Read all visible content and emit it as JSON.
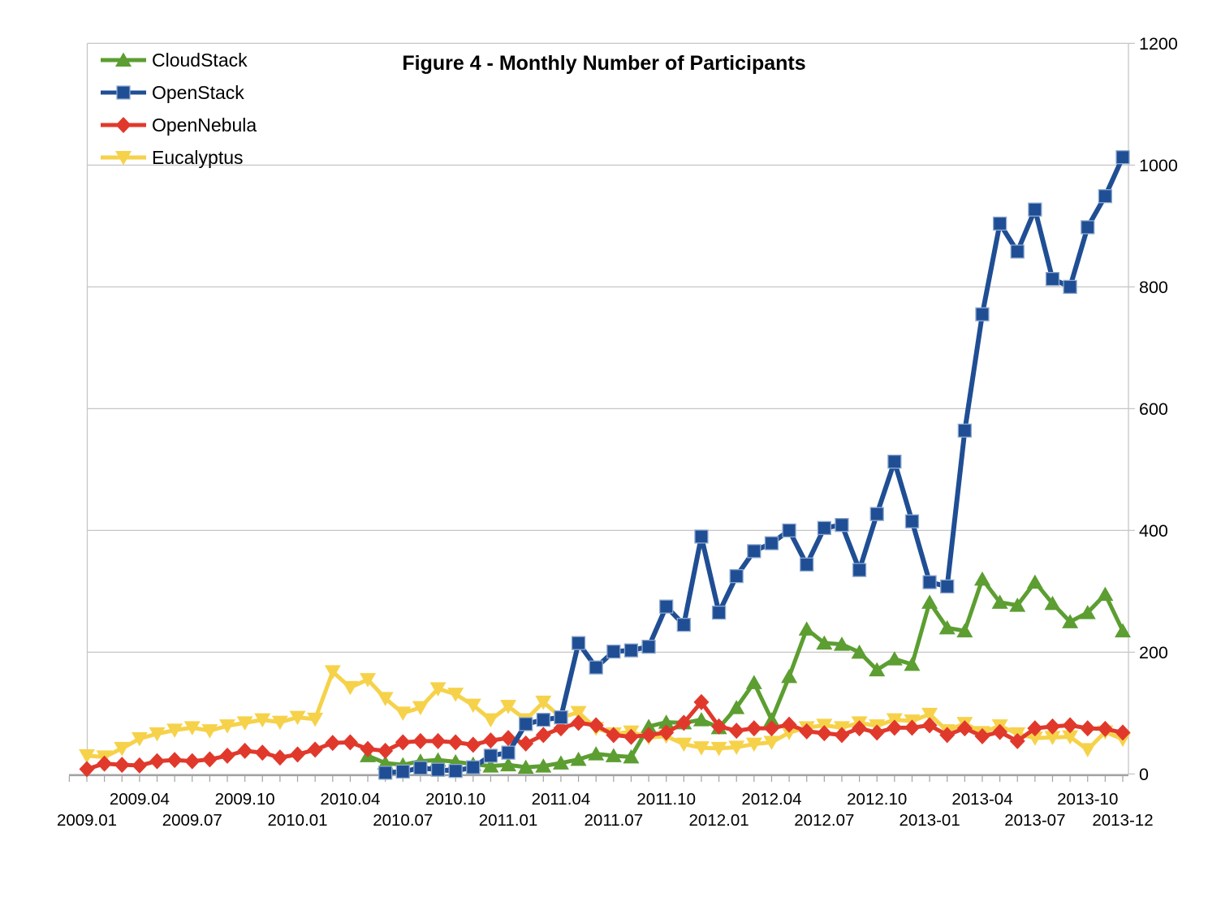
{
  "colors": {
    "gridline": "#c6c6c6",
    "axis": "#a3a3a3",
    "text": "#000000",
    "background": "#ffffff"
  },
  "chart_data": {
    "type": "line",
    "title": "Figure 4 - Monthly Number of Participants",
    "legend_position": "top-left",
    "grid": true,
    "x_axis": {
      "months_start": "2009.01",
      "months_end": "2013-12",
      "month_count": 60,
      "row1_labels": [
        {
          "label": "2009.04",
          "month": 3
        },
        {
          "label": "2009.10",
          "month": 9
        },
        {
          "label": "2010.04",
          "month": 15
        },
        {
          "label": "2010.10",
          "month": 21
        },
        {
          "label": "2011.04",
          "month": 27
        },
        {
          "label": "2011.10",
          "month": 33
        },
        {
          "label": "2012.04",
          "month": 39
        },
        {
          "label": "2012.10",
          "month": 45
        },
        {
          "label": "2013-04",
          "month": 51
        },
        {
          "label": "2013-10",
          "month": 57
        }
      ],
      "row2_labels": [
        {
          "label": "2009.01",
          "month": 0
        },
        {
          "label": "2009.07",
          "month": 6
        },
        {
          "label": "2010.01",
          "month": 12
        },
        {
          "label": "2010.07",
          "month": 18
        },
        {
          "label": "2011.01",
          "month": 24
        },
        {
          "label": "2011.07",
          "month": 30
        },
        {
          "label": "2012.01",
          "month": 36
        },
        {
          "label": "2012.07",
          "month": 42
        },
        {
          "label": "2013-01",
          "month": 48
        },
        {
          "label": "2013-07",
          "month": 54
        },
        {
          "label": "2013-12",
          "month": 59
        }
      ]
    },
    "y_axis": {
      "side": "right",
      "min": 0,
      "max": 1200,
      "tick_step": 200,
      "ticks": [
        0,
        200,
        400,
        600,
        800,
        1000,
        1200
      ]
    },
    "series": [
      {
        "name": "CloudStack",
        "color": "#5c9e31",
        "marker": "triangle-up",
        "values": [
          null,
          null,
          null,
          null,
          null,
          null,
          null,
          null,
          null,
          null,
          null,
          null,
          null,
          null,
          null,
          null,
          30,
          18,
          15,
          21,
          23,
          20,
          16,
          13,
          15,
          11,
          13,
          18,
          24,
          33,
          30,
          28,
          78,
          85,
          84,
          89,
          76,
          109,
          150,
          89,
          160,
          238,
          215,
          213,
          200,
          171,
          189,
          180,
          282,
          240,
          235,
          320,
          282,
          277,
          315,
          280,
          250,
          265,
          295,
          235
        ]
      },
      {
        "name": "OpenStack",
        "color": "#1f4e94",
        "marker": "square",
        "marker_edge": "#8ea9cf",
        "values": [
          null,
          null,
          null,
          null,
          null,
          null,
          null,
          null,
          null,
          null,
          null,
          null,
          null,
          null,
          null,
          null,
          null,
          2,
          4,
          10,
          7,
          5,
          11,
          30,
          35,
          82,
          89,
          93,
          215,
          175,
          201,
          203,
          209,
          275,
          245,
          390,
          265,
          325,
          366,
          379,
          400,
          344,
          404,
          409,
          335,
          427,
          513,
          415,
          315,
          308,
          564,
          755,
          904,
          858,
          927,
          813,
          800,
          898,
          949,
          1013
        ]
      },
      {
        "name": "OpenNebula",
        "color": "#e0392c",
        "marker": "diamond",
        "values": [
          8,
          17,
          15,
          14,
          21,
          23,
          21,
          24,
          30,
          38,
          35,
          27,
          32,
          40,
          51,
          52,
          41,
          38,
          52,
          54,
          54,
          52,
          48,
          55,
          59,
          50,
          64,
          75,
          84,
          80,
          64,
          61,
          64,
          68,
          84,
          118,
          78,
          71,
          75,
          75,
          81,
          70,
          67,
          64,
          75,
          68,
          76,
          76,
          80,
          64,
          75,
          62,
          69,
          54,
          75,
          78,
          80,
          75,
          74,
          68
        ]
      },
      {
        "name": "Eucalyptus",
        "color": "#f6d24a",
        "marker": "triangle-down",
        "values": [
          30,
          28,
          42,
          58,
          66,
          72,
          76,
          71,
          79,
          84,
          89,
          85,
          93,
          90,
          168,
          142,
          155,
          124,
          100,
          109,
          140,
          131,
          113,
          89,
          111,
          89,
          118,
          93,
          101,
          75,
          66,
          69,
          60,
          62,
          49,
          43,
          42,
          44,
          49,
          52,
          68,
          76,
          80,
          76,
          84,
          79,
          89,
          87,
          98,
          71,
          83,
          68,
          79,
          66,
          59,
          60,
          61,
          40,
          69,
          57
        ]
      }
    ]
  }
}
